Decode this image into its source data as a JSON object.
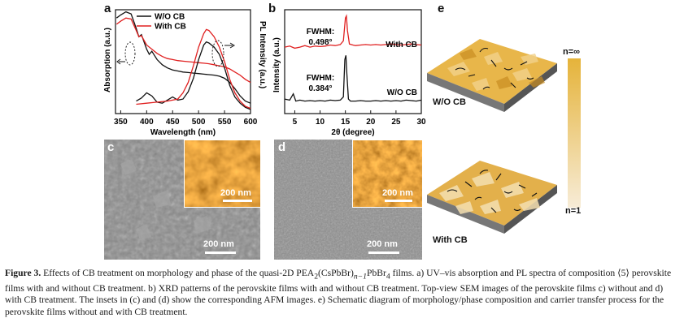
{
  "panels": {
    "a": {
      "letter": "a",
      "legend": [
        "W/O CB",
        "With CB"
      ],
      "xlabel": "Wavelength (nm)",
      "ylabel_left": "Absorption (a.u.)",
      "ylabel_right": "PL Intensity (a.u.)",
      "xticks": [
        "350",
        "400",
        "450",
        "500",
        "550",
        "600"
      ]
    },
    "b": {
      "letter": "b",
      "xlabel": "2θ (degree)",
      "ylabel": "Intensity (a.u.)",
      "xticks": [
        "5",
        "10",
        "15",
        "20",
        "25",
        "30"
      ],
      "fwhm_top_label": "FWHM:",
      "fwhm_top_value": "0.498°",
      "fwhm_bottom_label": "FWHM:",
      "fwhm_bottom_value": "0.384°",
      "series_top": "With CB",
      "series_bottom": "W/O CB"
    },
    "c": {
      "letter": "c",
      "inset_scale": "200 nm",
      "scale": "200 nm"
    },
    "d": {
      "letter": "d",
      "inset_scale": "200 nm",
      "scale": "200 nm"
    },
    "e": {
      "letter": "e",
      "top_label": "W/O CB",
      "bottom_label": "With CB",
      "bar_top": "n=∞",
      "bar_bottom": "n=1"
    }
  },
  "caption": {
    "figure_label": "Figure 3.",
    "title_pre": "Effects of CB treatment on morphology and phase of the quasi-2D PEA",
    "title_sub1": "2",
    "title_mid": "(CsPbBr)",
    "title_sub2": "n−1",
    "title_mid2": "PbBr",
    "title_sub3": "4",
    "title_post": " films.",
    "body": "a) UV–vis absorption and PL spectra of composition ⟨5⟩ perovskite films with and without CB treatment. b) XRD patterns of the perovskite films with and without CB treatment. Top-view SEM images of the perovskite films c) without and d) with CB treatment. The insets in (c) and (d) show the corresponding AFM images. e) Schematic diagram of morphology/phase composition and carrier transfer process for the perovskite films without and with CB treatment."
  },
  "chart_data": [
    {
      "type": "line",
      "panel": "a",
      "xlabel": "Wavelength (nm)",
      "ylabel": "Absorption (a.u.)",
      "y2label": "PL Intensity (a.u.)",
      "xlim": [
        340,
        600
      ],
      "series": [
        {
          "name": "W/O CB",
          "kind": "absorption",
          "color": "#111111",
          "x": [
            342,
            350,
            360,
            370,
            380,
            385,
            390,
            400,
            405,
            410,
            420,
            430,
            440,
            450,
            460,
            470,
            480,
            490,
            500,
            510,
            520,
            530,
            540,
            550,
            560,
            570,
            580,
            590,
            600
          ],
          "y": [
            0.92,
            0.95,
            0.98,
            0.96,
            0.82,
            0.74,
            0.76,
            0.62,
            0.57,
            0.6,
            0.52,
            0.47,
            0.44,
            0.42,
            0.41,
            0.4,
            0.395,
            0.39,
            0.385,
            0.38,
            0.375,
            0.37,
            0.36,
            0.34,
            0.3,
            0.24,
            0.17,
            0.12,
            0.1
          ]
        },
        {
          "name": "With CB",
          "kind": "absorption",
          "color": "#e02020",
          "x": [
            342,
            350,
            360,
            370,
            380,
            385,
            390,
            400,
            410,
            420,
            430,
            440,
            450,
            460,
            470,
            480,
            490,
            500,
            510,
            520,
            530,
            540,
            550,
            560,
            570,
            580,
            590,
            600
          ],
          "y": [
            0.86,
            0.89,
            0.92,
            0.91,
            0.8,
            0.74,
            0.75,
            0.66,
            0.62,
            0.58,
            0.55,
            0.53,
            0.52,
            0.51,
            0.505,
            0.5,
            0.495,
            0.49,
            0.485,
            0.48,
            0.47,
            0.46,
            0.45,
            0.43,
            0.4,
            0.37,
            0.33,
            0.3
          ]
        },
        {
          "name": "W/O CB",
          "kind": "PL",
          "color": "#111111",
          "x": [
            380,
            390,
            400,
            410,
            420,
            430,
            440,
            450,
            460,
            470,
            480,
            490,
            500,
            510,
            515,
            520,
            530,
            540,
            550,
            560,
            570,
            580,
            590,
            600
          ],
          "y": [
            0.12,
            0.15,
            0.2,
            0.17,
            0.11,
            0.1,
            0.13,
            0.16,
            0.13,
            0.14,
            0.21,
            0.34,
            0.52,
            0.66,
            0.69,
            0.68,
            0.64,
            0.57,
            0.44,
            0.27,
            0.16,
            0.1,
            0.06,
            0.04
          ]
        },
        {
          "name": "With CB",
          "kind": "PL",
          "color": "#e02020",
          "x": [
            380,
            400,
            420,
            440,
            460,
            470,
            480,
            490,
            500,
            510,
            515,
            520,
            530,
            540,
            550,
            560,
            570,
            580,
            590,
            600
          ],
          "y": [
            0.09,
            0.1,
            0.11,
            0.12,
            0.14,
            0.2,
            0.3,
            0.46,
            0.64,
            0.77,
            0.81,
            0.8,
            0.74,
            0.64,
            0.5,
            0.33,
            0.2,
            0.12,
            0.07,
            0.05
          ]
        }
      ]
    },
    {
      "type": "line",
      "panel": "b",
      "xlabel": "2θ (degree)",
      "ylabel": "Intensity (a.u.)",
      "xlim": [
        3,
        30
      ],
      "series": [
        {
          "name": "With CB",
          "color": "#e02020",
          "x": [
            3,
            4,
            5,
            6,
            7,
            8,
            9,
            10,
            11,
            12,
            13,
            14,
            14.6,
            15.0,
            15.2,
            15.4,
            15.8,
            16.5,
            17,
            18,
            19,
            20,
            21,
            22,
            23,
            24,
            25,
            26,
            27,
            28,
            29,
            30
          ],
          "y": [
            0.64,
            0.65,
            0.63,
            0.64,
            0.655,
            0.64,
            0.65,
            0.645,
            0.65,
            0.66,
            0.655,
            0.665,
            0.7,
            0.92,
            0.94,
            0.8,
            0.67,
            0.66,
            0.655,
            0.66,
            0.665,
            0.66,
            0.665,
            0.66,
            0.665,
            0.67,
            0.665,
            0.66,
            0.665,
            0.67,
            0.665,
            0.66
          ]
        },
        {
          "name": "W/O CB",
          "color": "#111111",
          "x": [
            3,
            4,
            4.7,
            5.2,
            6,
            7,
            8,
            9,
            10,
            11,
            12,
            13,
            14,
            14.6,
            14.9,
            15.1,
            15.3,
            15.6,
            16,
            17,
            18,
            19,
            20,
            21,
            22,
            23,
            24,
            25,
            26,
            27,
            28,
            29,
            30
          ],
          "y": [
            0.14,
            0.13,
            0.19,
            0.12,
            0.13,
            0.12,
            0.125,
            0.12,
            0.125,
            0.12,
            0.13,
            0.125,
            0.13,
            0.16,
            0.52,
            0.56,
            0.38,
            0.14,
            0.12,
            0.12,
            0.125,
            0.12,
            0.12,
            0.125,
            0.12,
            0.125,
            0.12,
            0.125,
            0.12,
            0.13,
            0.125,
            0.12,
            0.13
          ]
        }
      ]
    }
  ]
}
